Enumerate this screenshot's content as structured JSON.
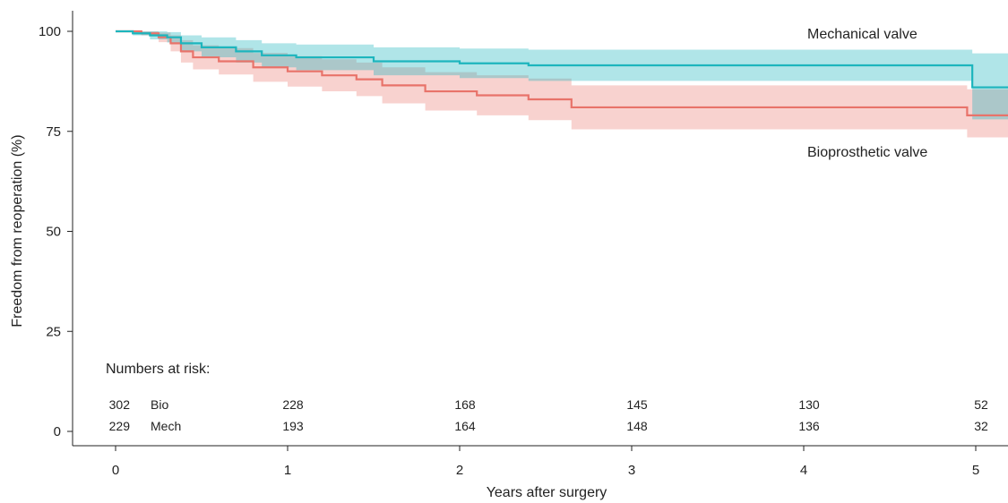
{
  "chart_data": {
    "type": "line",
    "subtype": "kaplan-meier",
    "xlabel": "Years after surgery",
    "ylabel": "Freedom from reoperation (%)",
    "xlim": [
      0,
      5.2
    ],
    "ylim": [
      0,
      105
    ],
    "x_ticks": [
      0,
      1,
      2,
      3,
      4,
      5
    ],
    "y_ticks": [
      0,
      25,
      50,
      75,
      100
    ],
    "grid": false,
    "colors": {
      "mechanical": "#1DB5BD",
      "bioprosthetic": "#E8736A"
    },
    "series": [
      {
        "name": "Mechanical valve",
        "color": "#1DB5BD",
        "x": [
          0,
          0.1,
          0.2,
          0.3,
          0.38,
          0.5,
          0.7,
          0.85,
          1.05,
          1.5,
          2.0,
          2.4,
          4.98,
          5.2
        ],
        "y": [
          100,
          99.5,
          99,
          98.5,
          97,
          96,
          95,
          94,
          93.5,
          92.5,
          92,
          91.5,
          86,
          86
        ],
        "ci_upper": [
          100,
          100,
          100,
          99.8,
          99,
          98.5,
          97.8,
          97,
          96.7,
          96,
          95.7,
          95.4,
          94.5,
          94.5
        ],
        "ci_lower": [
          100,
          99,
          98,
          97.2,
          95,
          93.5,
          92.2,
          91,
          90.3,
          89,
          88.3,
          87.6,
          78,
          78
        ]
      },
      {
        "name": "Bioprosthetic valve",
        "color": "#E8736A",
        "x": [
          0,
          0.15,
          0.25,
          0.32,
          0.38,
          0.45,
          0.6,
          0.8,
          1.0,
          1.2,
          1.4,
          1.55,
          1.8,
          2.1,
          2.4,
          2.65,
          4.95,
          5.2
        ],
        "y": [
          100,
          99.5,
          98.5,
          97,
          95,
          93.5,
          92.5,
          91,
          90,
          89,
          88,
          86.5,
          85,
          84,
          83,
          81,
          79,
          79
        ],
        "ci_upper": [
          100,
          100,
          99.7,
          99,
          97.8,
          96.5,
          95.8,
          94.6,
          93.8,
          93,
          92.2,
          91,
          89.8,
          89,
          88.2,
          86.5,
          85.5,
          85.5
        ],
        "ci_lower": [
          100,
          99,
          97.3,
          95,
          92.2,
          90.5,
          89.2,
          87.4,
          86.2,
          85,
          83.8,
          82,
          80.2,
          79,
          77.8,
          75.5,
          73.5,
          73.5
        ]
      }
    ],
    "curve_labels": [
      "Mechanical valve",
      "Bioprosthetic valve"
    ],
    "risk_table": {
      "title": "Numbers at risk:",
      "rows": [
        {
          "label": "Bio",
          "counts": [
            "302",
            "228",
            "168",
            "145",
            "130",
            "52"
          ]
        },
        {
          "label": "Mech",
          "counts": [
            "229",
            "193",
            "164",
            "148",
            "136",
            "32"
          ]
        }
      ]
    }
  }
}
